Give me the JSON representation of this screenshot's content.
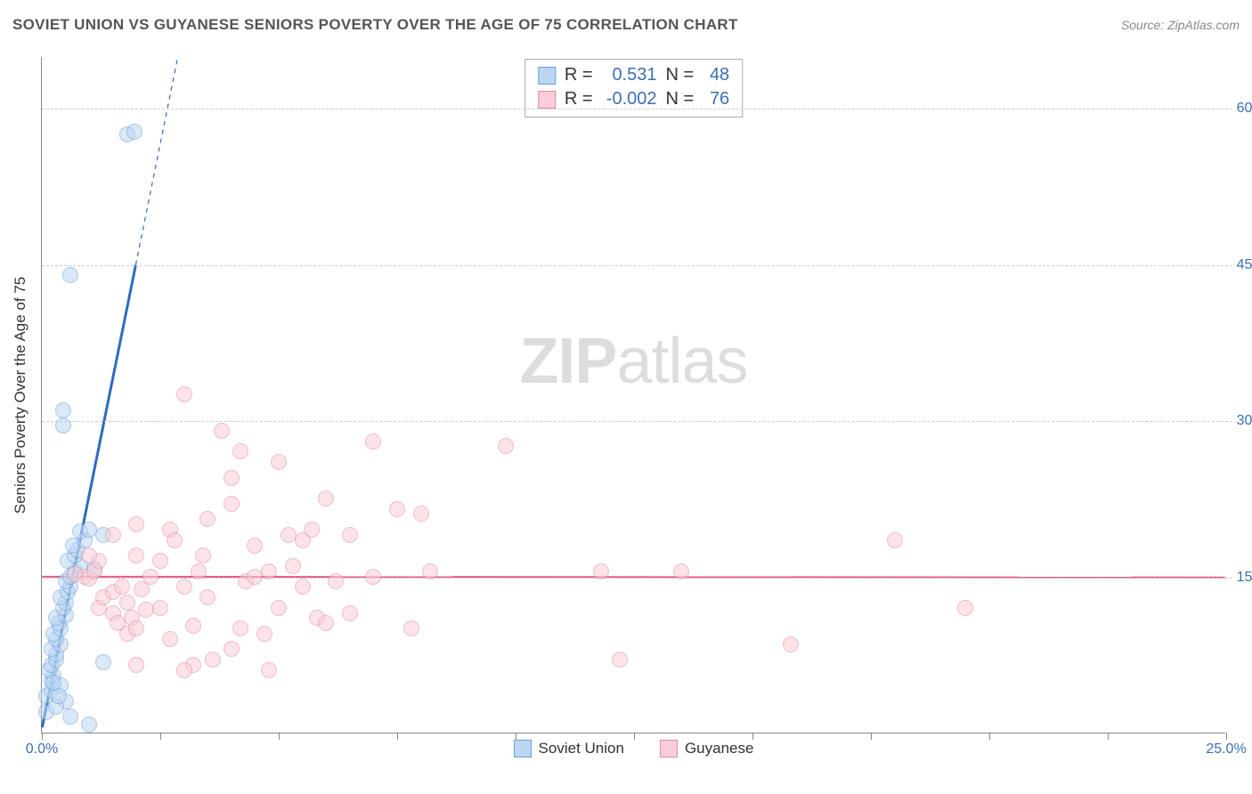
{
  "title": "SOVIET UNION VS GUYANESE SENIORS POVERTY OVER THE AGE OF 75 CORRELATION CHART",
  "source": "Source: ZipAtlas.com",
  "watermark_prefix": "ZIP",
  "watermark_suffix": "atlas",
  "y_axis_label": "Seniors Poverty Over the Age of 75",
  "chart": {
    "type": "scatter",
    "xlim": [
      0,
      25
    ],
    "ylim": [
      0,
      65
    ],
    "y_ticks": [
      15,
      30,
      45,
      60
    ],
    "y_tick_labels": [
      "15.0%",
      "30.0%",
      "45.0%",
      "60.0%"
    ],
    "x_ticks": [
      0,
      2.5,
      5,
      7.5,
      10,
      12.5,
      15,
      17.5,
      20,
      22.5,
      25
    ],
    "x_tick_labels": {
      "0": "0.0%",
      "25": "25.0%"
    },
    "background_color": "#ffffff",
    "grid_color": "#cccccc",
    "axis_color": "#888888",
    "tick_label_color": "#3b6fb5",
    "point_radius": 9,
    "series": [
      {
        "name": "Soviet Union",
        "fill": "#bcd6f2",
        "stroke": "#6a9fd8",
        "fill_opacity": 0.55,
        "r_value": "0.531",
        "n_value": "48",
        "trend": {
          "slope": 22.5,
          "intercept": 0.5,
          "color": "#2e6bc0",
          "width": 3,
          "dash_extend": true
        },
        "points": [
          [
            0.1,
            2.0
          ],
          [
            0.1,
            3.5
          ],
          [
            0.2,
            4.0
          ],
          [
            0.2,
            5.0
          ],
          [
            0.25,
            5.5
          ],
          [
            0.15,
            6.0
          ],
          [
            0.2,
            6.5
          ],
          [
            0.3,
            7.0
          ],
          [
            0.3,
            7.5
          ],
          [
            0.2,
            8.0
          ],
          [
            0.4,
            8.5
          ],
          [
            0.3,
            9.0
          ],
          [
            0.25,
            9.5
          ],
          [
            0.4,
            10.0
          ],
          [
            0.35,
            10.5
          ],
          [
            0.3,
            11.0
          ],
          [
            0.5,
            11.3
          ],
          [
            0.45,
            12.0
          ],
          [
            0.5,
            12.5
          ],
          [
            0.4,
            13.0
          ],
          [
            0.55,
            13.5
          ],
          [
            0.6,
            14.0
          ],
          [
            0.5,
            14.5
          ],
          [
            0.6,
            15.0
          ],
          [
            0.7,
            15.5
          ],
          [
            0.8,
            16.0
          ],
          [
            0.55,
            16.5
          ],
          [
            0.7,
            17.0
          ],
          [
            0.75,
            17.5
          ],
          [
            0.65,
            18.0
          ],
          [
            0.9,
            18.5
          ],
          [
            0.8,
            19.3
          ],
          [
            1.0,
            19.5
          ],
          [
            1.1,
            15.7
          ],
          [
            1.3,
            6.8
          ],
          [
            1.3,
            19.0
          ],
          [
            0.6,
            1.5
          ],
          [
            1.0,
            0.8
          ],
          [
            0.5,
            3.0
          ],
          [
            0.4,
            4.5
          ],
          [
            0.45,
            29.5
          ],
          [
            0.45,
            31.0
          ],
          [
            0.6,
            44.0
          ],
          [
            1.8,
            57.5
          ],
          [
            1.95,
            57.7
          ],
          [
            0.3,
            2.5
          ],
          [
            0.35,
            3.5
          ],
          [
            0.25,
            4.8
          ]
        ]
      },
      {
        "name": "Guyanese",
        "fill": "#f8cdd7",
        "stroke": "#e28aa2",
        "fill_opacity": 0.55,
        "r_value": "-0.002",
        "n_value": "76",
        "trend": {
          "slope": -0.003,
          "intercept": 15.0,
          "color": "#e75a8a",
          "width": 2,
          "dash_extend": false
        },
        "points": [
          [
            0.7,
            15.2
          ],
          [
            0.9,
            15.0
          ],
          [
            1.0,
            14.8
          ],
          [
            1.1,
            15.5
          ],
          [
            1.2,
            12.0
          ],
          [
            1.3,
            13.0
          ],
          [
            1.5,
            11.5
          ],
          [
            1.5,
            13.5
          ],
          [
            1.6,
            10.5
          ],
          [
            1.7,
            14.0
          ],
          [
            1.8,
            9.5
          ],
          [
            1.8,
            12.5
          ],
          [
            1.9,
            11.0
          ],
          [
            2.0,
            10.0
          ],
          [
            2.0,
            17.0
          ],
          [
            2.0,
            20.0
          ],
          [
            2.1,
            13.8
          ],
          [
            2.2,
            11.8
          ],
          [
            2.3,
            15.0
          ],
          [
            2.5,
            16.5
          ],
          [
            2.5,
            12.0
          ],
          [
            2.7,
            19.5
          ],
          [
            2.7,
            9.0
          ],
          [
            2.8,
            18.5
          ],
          [
            3.0,
            32.5
          ],
          [
            3.0,
            14.0
          ],
          [
            3.2,
            6.5
          ],
          [
            3.2,
            10.3
          ],
          [
            3.3,
            15.5
          ],
          [
            3.4,
            17.0
          ],
          [
            3.5,
            20.5
          ],
          [
            3.5,
            13.0
          ],
          [
            3.6,
            7.0
          ],
          [
            3.8,
            29.0
          ],
          [
            4.0,
            22.0
          ],
          [
            4.0,
            8.0
          ],
          [
            4.0,
            24.5
          ],
          [
            4.2,
            27.0
          ],
          [
            4.2,
            10.0
          ],
          [
            4.3,
            14.5
          ],
          [
            4.5,
            15.0
          ],
          [
            4.5,
            18.0
          ],
          [
            4.7,
            9.5
          ],
          [
            4.8,
            6.0
          ],
          [
            5.0,
            12.0
          ],
          [
            5.0,
            26.0
          ],
          [
            5.2,
            19.0
          ],
          [
            5.3,
            16.0
          ],
          [
            5.5,
            14.0
          ],
          [
            5.5,
            18.5
          ],
          [
            5.7,
            19.5
          ],
          [
            5.8,
            11.0
          ],
          [
            6.0,
            10.5
          ],
          [
            6.0,
            22.5
          ],
          [
            6.2,
            14.5
          ],
          [
            6.5,
            11.5
          ],
          [
            6.5,
            19.0
          ],
          [
            7.0,
            28.0
          ],
          [
            7.0,
            15.0
          ],
          [
            7.5,
            21.5
          ],
          [
            7.8,
            10.0
          ],
          [
            8.0,
            21.0
          ],
          [
            8.2,
            15.5
          ],
          [
            9.8,
            27.5
          ],
          [
            11.8,
            15.5
          ],
          [
            12.2,
            7.0
          ],
          [
            13.5,
            15.5
          ],
          [
            15.8,
            8.5
          ],
          [
            18.0,
            18.5
          ],
          [
            19.5,
            12.0
          ],
          [
            4.8,
            15.5
          ],
          [
            3.0,
            6.0
          ],
          [
            2.0,
            6.5
          ],
          [
            1.5,
            19.0
          ],
          [
            1.2,
            16.5
          ],
          [
            1.0,
            17.0
          ]
        ]
      }
    ]
  },
  "stats_box": {
    "r_label": "R =",
    "n_label": "N ="
  },
  "bottom_legend_labels": [
    "Soviet Union",
    "Guyanese"
  ]
}
